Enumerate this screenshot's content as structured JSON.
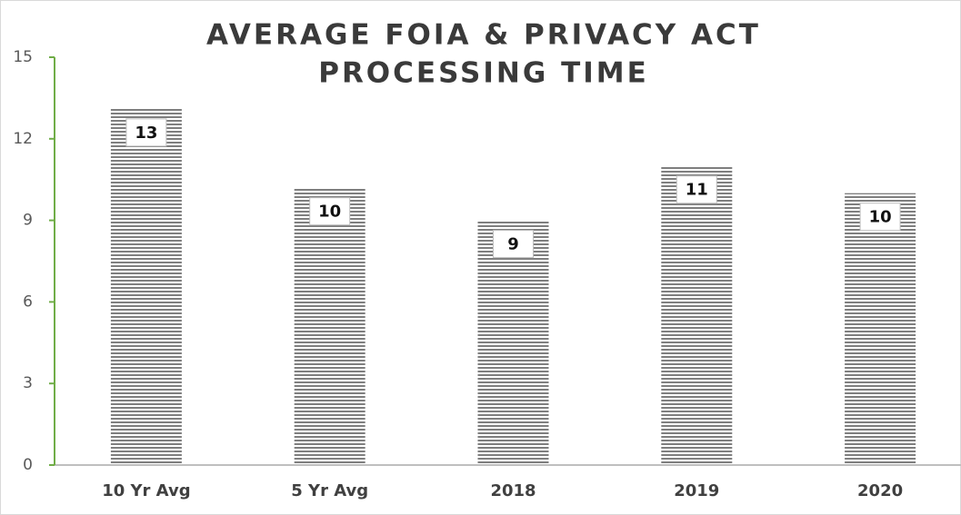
{
  "chart_data": {
    "type": "bar",
    "title": [
      "AVERAGE FOIA  & PRIVACY ACT",
      "PROCESSING TIME"
    ],
    "categories": [
      "10 Yr Avg",
      "5 Yr Avg",
      "2018",
      "2019",
      "2020"
    ],
    "values": [
      13.1,
      10.2,
      9,
      11,
      10
    ],
    "value_labels": [
      "13",
      "10",
      "9",
      "11",
      "10"
    ],
    "color": "#7f7f7f",
    "ylim": [
      0,
      15
    ],
    "yticks": [
      0,
      3,
      6,
      9,
      12,
      15
    ],
    "grid": false
  }
}
